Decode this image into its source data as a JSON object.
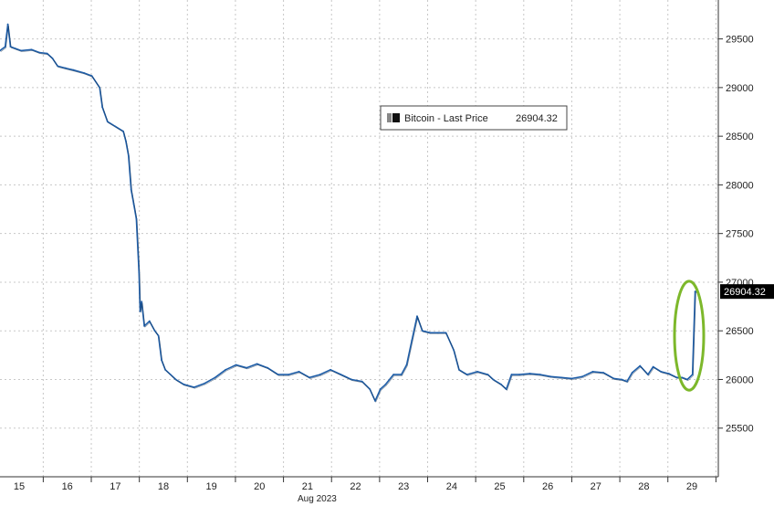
{
  "chart_data": {
    "type": "line",
    "title": "",
    "xlabel": "Aug 2023",
    "ylabel": "",
    "x_ticks": [
      "15",
      "16",
      "17",
      "18",
      "19",
      "20",
      "21",
      "22",
      "23",
      "24",
      "25",
      "26",
      "27",
      "28",
      "29"
    ],
    "x_domain": [
      14.6,
      29.55
    ],
    "ylim": [
      25000,
      29900
    ],
    "y_ticks": [
      25500,
      26000,
      26500,
      27000,
      27500,
      28000,
      28500,
      29000,
      29500
    ],
    "grid": true,
    "legend_position": "top-center",
    "series": [
      {
        "name": "Bitcoin - Last Price",
        "last_value_label": "26904.32",
        "color": "#2a6fb5",
        "points": [
          [
            14.6,
            29380
          ],
          [
            14.7,
            29420
          ],
          [
            14.75,
            29650
          ],
          [
            14.8,
            29420
          ],
          [
            14.9,
            29400
          ],
          [
            15.0,
            29380
          ],
          [
            15.2,
            29390
          ],
          [
            15.35,
            29360
          ],
          [
            15.5,
            29350
          ],
          [
            15.6,
            29300
          ],
          [
            15.7,
            29220
          ],
          [
            15.85,
            29200
          ],
          [
            16.0,
            29180
          ],
          [
            16.2,
            29150
          ],
          [
            16.35,
            29120
          ],
          [
            16.5,
            29000
          ],
          [
            16.55,
            28800
          ],
          [
            16.65,
            28650
          ],
          [
            16.8,
            28600
          ],
          [
            16.95,
            28550
          ],
          [
            17.0,
            28450
          ],
          [
            17.05,
            28300
          ],
          [
            17.1,
            27950
          ],
          [
            17.15,
            27800
          ],
          [
            17.2,
            27650
          ],
          [
            17.25,
            27100
          ],
          [
            17.27,
            26700
          ],
          [
            17.3,
            26800
          ],
          [
            17.35,
            26550
          ],
          [
            17.45,
            26600
          ],
          [
            17.55,
            26500
          ],
          [
            17.62,
            26450
          ],
          [
            17.68,
            26200
          ],
          [
            17.75,
            26100
          ],
          [
            17.85,
            26050
          ],
          [
            17.95,
            26000
          ],
          [
            18.1,
            25950
          ],
          [
            18.3,
            25920
          ],
          [
            18.5,
            25960
          ],
          [
            18.7,
            26020
          ],
          [
            18.9,
            26100
          ],
          [
            19.1,
            26150
          ],
          [
            19.3,
            26120
          ],
          [
            19.5,
            26160
          ],
          [
            19.7,
            26120
          ],
          [
            19.9,
            26050
          ],
          [
            20.1,
            26050
          ],
          [
            20.3,
            26080
          ],
          [
            20.5,
            26020
          ],
          [
            20.7,
            26050
          ],
          [
            20.9,
            26100
          ],
          [
            21.1,
            26050
          ],
          [
            21.3,
            26000
          ],
          [
            21.5,
            25980
          ],
          [
            21.65,
            25900
          ],
          [
            21.75,
            25780
          ],
          [
            21.85,
            25900
          ],
          [
            21.95,
            25950
          ],
          [
            22.1,
            26050
          ],
          [
            22.25,
            26050
          ],
          [
            22.35,
            26150
          ],
          [
            22.45,
            26400
          ],
          [
            22.55,
            26650
          ],
          [
            22.65,
            26500
          ],
          [
            22.8,
            26480
          ],
          [
            22.95,
            26480
          ],
          [
            23.1,
            26480
          ],
          [
            23.25,
            26300
          ],
          [
            23.35,
            26100
          ],
          [
            23.5,
            26050
          ],
          [
            23.7,
            26080
          ],
          [
            23.9,
            26050
          ],
          [
            24.0,
            26000
          ],
          [
            24.15,
            25950
          ],
          [
            24.25,
            25900
          ],
          [
            24.35,
            26050
          ],
          [
            24.5,
            26050
          ],
          [
            24.7,
            26060
          ],
          [
            24.9,
            26050
          ],
          [
            25.1,
            26030
          ],
          [
            25.3,
            26020
          ],
          [
            25.5,
            26010
          ],
          [
            25.7,
            26030
          ],
          [
            25.9,
            26080
          ],
          [
            26.1,
            26070
          ],
          [
            26.3,
            26010
          ],
          [
            26.45,
            26000
          ],
          [
            26.55,
            25980
          ],
          [
            26.65,
            26070
          ],
          [
            26.8,
            26140
          ],
          [
            26.95,
            26050
          ],
          [
            27.05,
            26130
          ],
          [
            27.2,
            26080
          ],
          [
            27.35,
            26060
          ],
          [
            27.5,
            26020
          ],
          [
            27.6,
            26020
          ],
          [
            27.7,
            26000
          ],
          [
            27.8,
            26050
          ],
          [
            27.85,
            26904
          ],
          [
            27.88,
            26904
          ]
        ]
      }
    ],
    "annotations": [
      {
        "type": "ellipse-highlight",
        "x_center": 28.75,
        "y_center": 26450,
        "x_radius": 0.18,
        "y_radius": 560,
        "color": "#7db82b"
      }
    ]
  }
}
